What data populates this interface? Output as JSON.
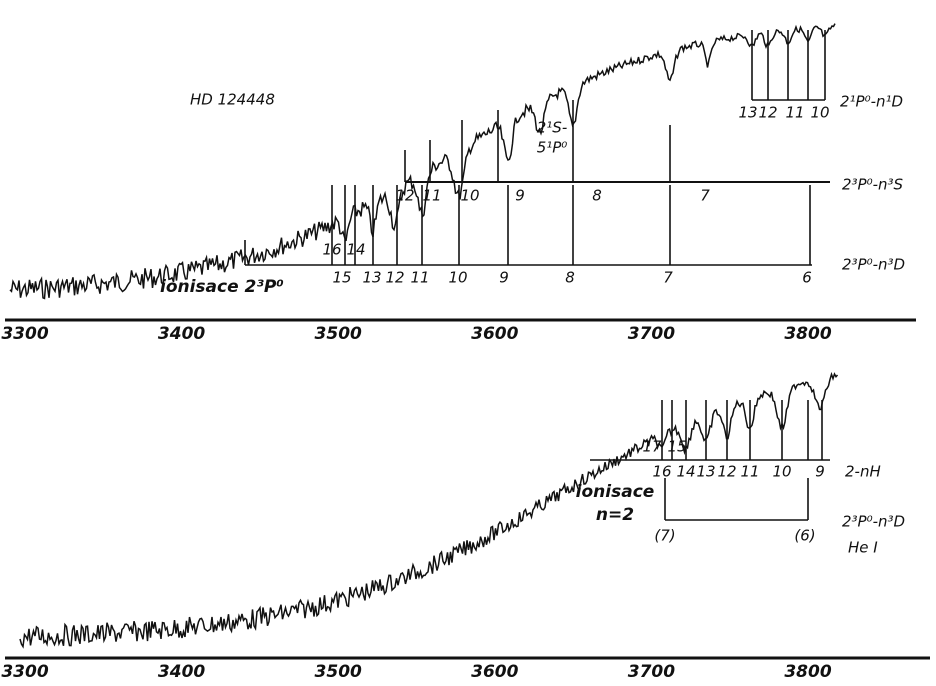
{
  "top": {
    "star": "HD 124448",
    "axis": [
      "3300",
      "3400",
      "3500",
      "3600",
      "3700",
      "3800"
    ],
    "series": [
      {
        "label": "2¹P⁰-n¹D",
        "lines": [
          "13",
          "12",
          "11",
          "10"
        ]
      },
      {
        "label": "2³P⁰-n³S",
        "lines": [
          "12",
          "11",
          "10",
          "9",
          "8",
          "7"
        ]
      },
      {
        "label": "2³P⁰-n³D",
        "lines": [
          "16",
          "15",
          "14",
          "13",
          "12",
          "11",
          "10",
          "9",
          "8",
          "7",
          "6"
        ]
      }
    ],
    "annotation": [
      "2¹S-",
      "5¹P⁰"
    ],
    "ionisation": "ionisace 2³P⁰"
  },
  "bottom": {
    "axis": [
      "3300",
      "3400",
      "3500",
      "3600",
      "3700",
      "3800"
    ],
    "series": [
      {
        "label": "2-nH",
        "lines": [
          "17",
          "16",
          "15",
          "14",
          "13",
          "12",
          "11",
          "10",
          "9"
        ]
      },
      {
        "label": "2³P⁰-n³D",
        "sublabel": "He I",
        "lines": [
          "(7)",
          "(6)"
        ]
      }
    ],
    "ionisation": [
      "ionisace",
      "n=2"
    ]
  }
}
